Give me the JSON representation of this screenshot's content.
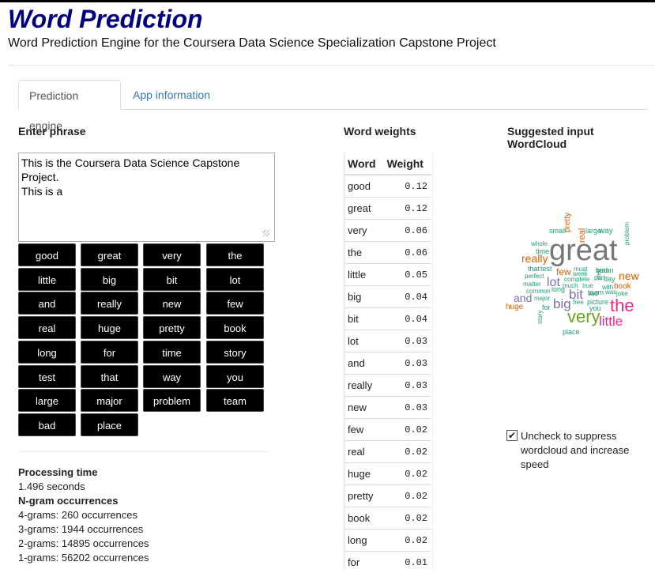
{
  "app": {
    "title": "Word Prediction",
    "subtitle": "Word Prediction Engine for the Coursera Data Science Specialization Capstone Project"
  },
  "tabs": [
    {
      "label": "Prediction engine",
      "active": true
    },
    {
      "label": "App information",
      "active": false
    }
  ],
  "input": {
    "label": "Enter phrase",
    "value": "This is the Coursera Data Science Capstone Project.\nThis is a "
  },
  "suggestions": [
    "good",
    "great",
    "very",
    "the",
    "little",
    "big",
    "bit",
    "lot",
    "and",
    "really",
    "new",
    "few",
    "real",
    "huge",
    "pretty",
    "book",
    "long",
    "for",
    "time",
    "story",
    "test",
    "that",
    "way",
    "you",
    "large",
    "major",
    "problem",
    "team",
    "bad",
    "place"
  ],
  "stats": {
    "processing_label": "Processing time",
    "processing_value": "1.496 seconds",
    "ngram_label": "N-gram occurrences",
    "lines": [
      "4-grams: 260 occurrences",
      "3-grams: 1944 occurrences",
      "2-grams: 14895 occurrences",
      "1-grams: 56202 occurrences"
    ]
  },
  "weights": {
    "label": "Word weights",
    "headers": [
      "Word",
      "Weight"
    ],
    "rows": [
      [
        "good",
        "0.12"
      ],
      [
        "great",
        "0.12"
      ],
      [
        "very",
        "0.06"
      ],
      [
        "the",
        "0.06"
      ],
      [
        "little",
        "0.05"
      ],
      [
        "big",
        "0.04"
      ],
      [
        "bit",
        "0.04"
      ],
      [
        "lot",
        "0.03"
      ],
      [
        "and",
        "0.03"
      ],
      [
        "really",
        "0.03"
      ],
      [
        "new",
        "0.03"
      ],
      [
        "few",
        "0.02"
      ],
      [
        "real",
        "0.02"
      ],
      [
        "huge",
        "0.02"
      ],
      [
        "pretty",
        "0.02"
      ],
      [
        "book",
        "0.02"
      ],
      [
        "long",
        "0.02"
      ],
      [
        "for",
        "0.01"
      ]
    ]
  },
  "wordcloud": {
    "label": "Suggested input WordCloud",
    "words": [
      {
        "t": "great",
        "c": "#777777"
      },
      {
        "t": "very",
        "c": "#66a61e"
      },
      {
        "t": "the",
        "c": "#e7298a"
      },
      {
        "t": "little",
        "c": "#e7298a"
      },
      {
        "t": "big",
        "c": "#7570b3"
      },
      {
        "t": "bit",
        "c": "#7570b3"
      },
      {
        "t": "lot",
        "c": "#7570b3"
      },
      {
        "t": "and",
        "c": "#7570b3"
      },
      {
        "t": "really",
        "c": "#d95f02"
      },
      {
        "t": "new",
        "c": "#d95f02"
      },
      {
        "t": "few",
        "c": "#d95f02"
      },
      {
        "t": "real",
        "c": "#d95f02"
      },
      {
        "t": "huge",
        "c": "#d95f02"
      },
      {
        "t": "pretty",
        "c": "#d95f02"
      },
      {
        "t": "book",
        "c": "#d95f02"
      },
      {
        "t": "long",
        "c": "#1b9e77"
      },
      {
        "t": "for",
        "c": "#1b9e77"
      },
      {
        "t": "time",
        "c": "#1b9e77"
      },
      {
        "t": "story",
        "c": "#1b9e77"
      },
      {
        "t": "test",
        "c": "#1b9e77"
      },
      {
        "t": "that",
        "c": "#1b9e77"
      },
      {
        "t": "way",
        "c": "#1b9e77"
      },
      {
        "t": "you",
        "c": "#1b9e77"
      },
      {
        "t": "large",
        "c": "#1b9e77"
      },
      {
        "t": "major",
        "c": "#1b9e77"
      },
      {
        "t": "problem",
        "c": "#1b9e77"
      },
      {
        "t": "team",
        "c": "#1b9e77"
      },
      {
        "t": "bad",
        "c": "#1b9e77"
      },
      {
        "t": "place",
        "c": "#1b9e77"
      },
      {
        "t": "small",
        "c": "#1b9e77"
      },
      {
        "t": "whole",
        "c": "#1b9e77"
      },
      {
        "t": "perfect",
        "c": "#1b9e77"
      },
      {
        "t": "matter",
        "c": "#1b9e77"
      },
      {
        "t": "common",
        "c": "#1b9e77"
      },
      {
        "t": "much",
        "c": "#1b9e77"
      },
      {
        "t": "true",
        "c": "#1b9e77"
      },
      {
        "t": "sad",
        "c": "#1b9e77"
      },
      {
        "t": "free",
        "c": "#1b9e77"
      },
      {
        "t": "picture",
        "c": "#1b9e77"
      },
      {
        "t": "complete",
        "c": "#1b9e77"
      },
      {
        "t": "week",
        "c": "#1b9e77"
      },
      {
        "t": "must",
        "c": "#1b9e77"
      },
      {
        "t": "man",
        "c": "#1b9e77"
      },
      {
        "t": "day",
        "c": "#1b9e77"
      },
      {
        "t": "part",
        "c": "#1b9e77"
      },
      {
        "t": "year",
        "c": "#1b9e77"
      },
      {
        "t": "with",
        "c": "#1b9e77"
      },
      {
        "t": "was",
        "c": "#1b9e77"
      },
      {
        "t": "joke",
        "c": "#1b9e77"
      }
    ]
  },
  "checkbox": {
    "checked": true,
    "label": "Uncheck to suppress wordcloud and increase speed"
  }
}
